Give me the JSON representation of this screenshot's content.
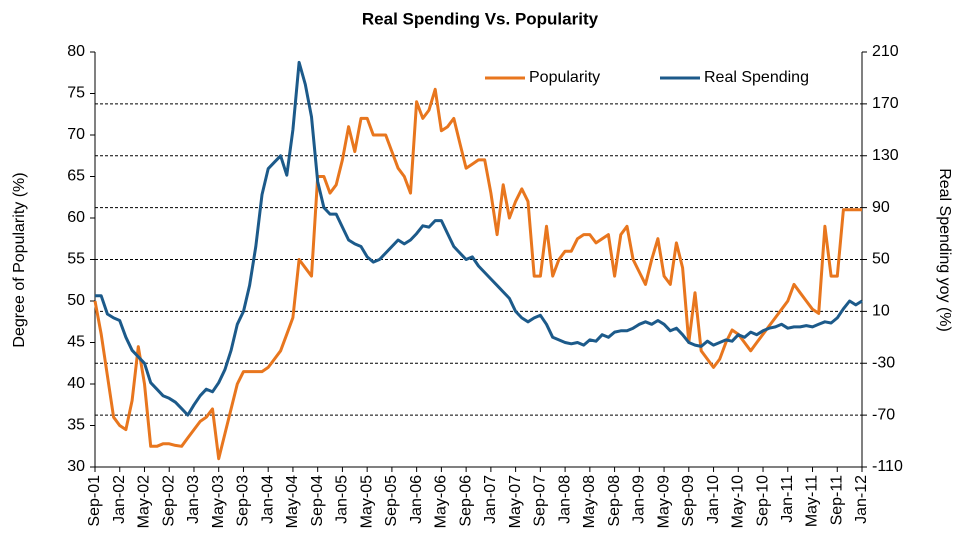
{
  "chart_data": {
    "type": "line",
    "title": "Real Spending Vs. Popularity",
    "ylabel": "Degree of Popularity  (%)",
    "y2label": "Real Spending yoy (%)",
    "categories": [
      "Sep-01",
      null,
      null,
      null,
      "Jan-02",
      null,
      null,
      null,
      "May-02",
      null,
      null,
      null,
      "Sep-02",
      null,
      null,
      null,
      "Jan-03",
      null,
      null,
      null,
      "May-03",
      null,
      null,
      null,
      "Sep-03",
      null,
      null,
      null,
      "Jan-04",
      null,
      null,
      null,
      "May-04",
      null,
      null,
      null,
      "Sep-04",
      null,
      null,
      null,
      "Jan-05",
      null,
      null,
      null,
      "May-05",
      null,
      null,
      null,
      "Sep-05",
      null,
      null,
      null,
      "Jan-06",
      null,
      null,
      null,
      "May-06",
      null,
      null,
      null,
      "Sep-06",
      null,
      null,
      null,
      "Jan-07",
      null,
      null,
      null,
      "May-07",
      null,
      null,
      null,
      "Sep-07",
      null,
      null,
      null,
      "Jan-08",
      null,
      null,
      null,
      "May-08",
      null,
      null,
      null,
      "Sep-08",
      null,
      null,
      null,
      "Jan-09",
      null,
      null,
      null,
      "May-09",
      null,
      null,
      null,
      "Sep-09",
      null,
      null,
      null,
      "Jan-10",
      null,
      null,
      null,
      "May-10",
      null,
      null,
      null,
      "Sep-10",
      null,
      null,
      null,
      "Jan-11",
      null,
      null,
      null,
      "May-11",
      null,
      null,
      null,
      "Sep-11",
      null,
      null,
      null,
      "Jan-12"
    ],
    "series": [
      {
        "name": "Popularity",
        "color": "#e8761e",
        "axis": "y",
        "values": [
          50,
          46,
          41,
          36,
          35,
          34.5,
          38,
          44.5,
          40,
          32.5,
          32.5,
          32.8,
          32.8,
          32.6,
          32.5,
          33.5,
          34.5,
          35.5,
          36,
          37,
          31,
          34,
          37,
          40,
          41.5,
          41.5,
          41.5,
          41.5,
          42,
          43,
          44,
          46,
          48,
          55,
          54,
          53,
          65,
          65,
          63,
          64,
          67,
          71,
          68,
          72,
          72,
          70,
          70,
          70,
          68,
          66,
          65,
          63,
          74,
          72,
          73,
          75.5,
          70.5,
          71,
          72,
          69,
          66,
          66.5,
          67,
          67,
          63,
          58,
          64,
          60,
          62,
          63.5,
          62,
          53,
          53,
          59,
          53,
          55,
          56,
          56,
          57.5,
          58,
          58,
          57,
          57.5,
          58,
          53,
          58,
          59,
          55,
          53.5,
          52,
          55,
          57.5,
          53,
          52,
          57,
          54,
          45,
          51,
          44,
          43,
          42,
          43,
          45,
          46.5,
          46,
          45,
          44,
          45,
          46,
          47,
          48,
          49,
          50,
          52,
          51,
          50,
          49,
          48.5,
          59,
          53,
          53,
          61,
          61,
          61,
          61
        ]
      },
      {
        "name": "Real Spending",
        "color": "#1c5a8a",
        "axis": "y2",
        "values": [
          22,
          22,
          8,
          5,
          3,
          -10,
          -20,
          -25,
          -30,
          -45,
          -50,
          -55,
          -57,
          -60,
          -65,
          -70,
          -62,
          -55,
          -50,
          -52,
          -45,
          -35,
          -20,
          0,
          10,
          30,
          60,
          100,
          120,
          125,
          130,
          115,
          150,
          202,
          185,
          160,
          110,
          90,
          85,
          85,
          75,
          65,
          62,
          60,
          52,
          48,
          50,
          55,
          60,
          65,
          62,
          65,
          70,
          76,
          75,
          80,
          80,
          70,
          60,
          55,
          50,
          52,
          45,
          40,
          35,
          30,
          25,
          20,
          10,
          5,
          2,
          5,
          7,
          0,
          -10,
          -12,
          -14,
          -15,
          -14,
          -16,
          -12,
          -13,
          -8,
          -10,
          -6,
          -5,
          -5,
          -3,
          0,
          2,
          0,
          3,
          0,
          -5,
          -3,
          -8,
          -14,
          -16,
          -17,
          -13,
          -16,
          -14,
          -12,
          -13,
          -8,
          -10,
          -6,
          -8,
          -5,
          -3,
          -2,
          0,
          -3,
          -2,
          -2,
          -1,
          -2,
          0,
          2,
          1,
          5,
          12,
          18,
          15,
          18
        ]
      }
    ],
    "ylim": [
      30,
      80
    ],
    "yticks": [
      30,
      35,
      40,
      45,
      50,
      55,
      60,
      65,
      70,
      75,
      80
    ],
    "y2lim": [
      -110,
      210
    ],
    "y2ticks": [
      -110,
      -70,
      -30,
      10,
      50,
      90,
      130,
      170,
      210
    ],
    "grid": "y2",
    "legend": "top-right"
  }
}
